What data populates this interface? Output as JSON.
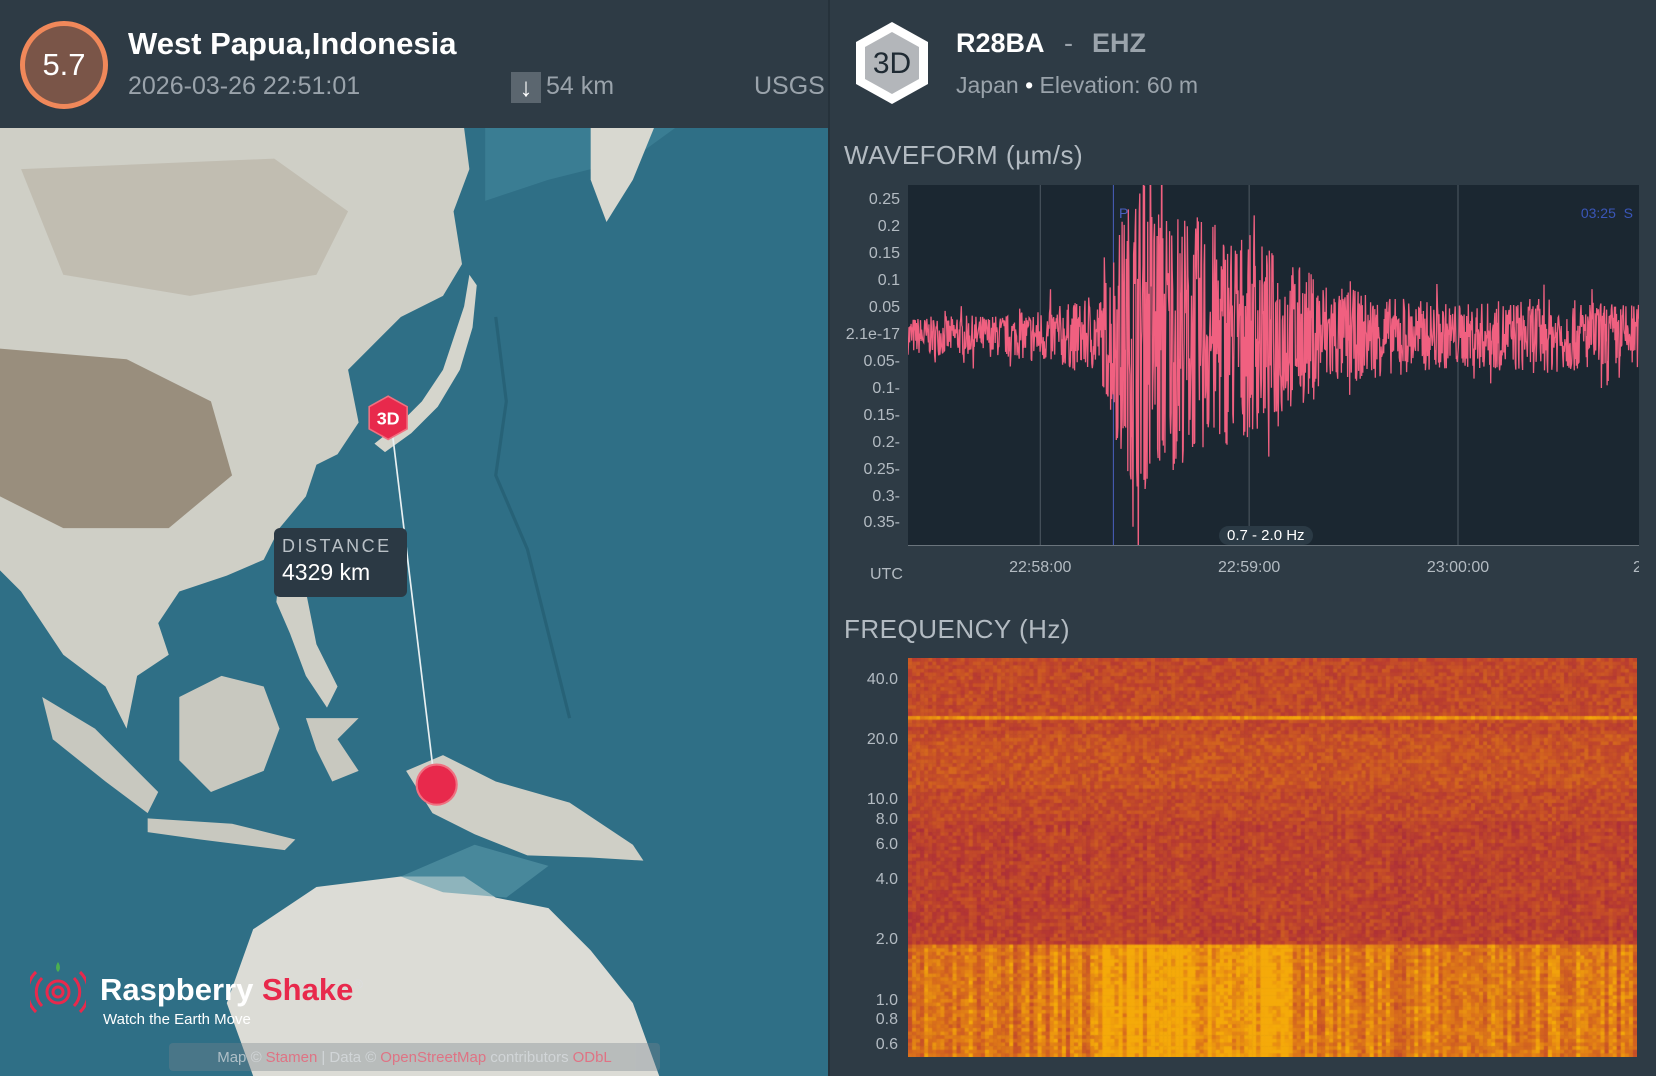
{
  "event": {
    "magnitude": "5.7",
    "location": "West Papua,Indonesia",
    "time": "2026-03-26 22:51:01",
    "depth": "54 km",
    "source": "USGS",
    "colors": {
      "magnitude_fill": "#7a5548",
      "magnitude_ring": "#f0885a"
    }
  },
  "station": {
    "badge": "3D",
    "code": "R28BA",
    "separator": "-",
    "channel": "EHZ",
    "country": "Japan",
    "bullet": "•",
    "elevation": "Elevation: 60 m"
  },
  "map": {
    "station_marker": "3D",
    "distance_label": "DISTANCE",
    "distance_value": "4329 km",
    "logo": {
      "brand1": "Raspberry",
      "brand2": "Shake",
      "reg": "®",
      "tagline": "Watch the Earth Move"
    },
    "attribution": {
      "map_prefix": "Map ©",
      "map_link": "Stamen",
      "sep": "| Data ©",
      "data_link": "OpenStreetMap",
      "suffix": "contributors",
      "extra_link": "ODbL"
    },
    "colors": {
      "ocean": "#2f6f86",
      "marker": "#e8294c"
    }
  },
  "waveform": {
    "title": "WAVEFORM (µm/s)",
    "utc_label": "UTC",
    "filter_label": "0.7 - 2.0 Hz",
    "p_label": "P",
    "s_label": "03:25  S",
    "x_cut_label": "2"
  },
  "spectrogram": {
    "title": "FREQUENCY (Hz)"
  },
  "chart_data": [
    {
      "type": "line",
      "title": "WAVEFORM (µm/s)",
      "ylabel": "µm/s",
      "xlabel": "UTC",
      "yticks": [
        "0.25",
        "0.2",
        "0.15",
        "0.1",
        "0.05",
        "2.1e-17",
        "-0.05",
        "-0.1",
        "-0.15",
        "-0.2",
        "-0.25",
        "-0.3",
        "-0.35"
      ],
      "ytick_values": [
        0.25,
        0.2,
        0.15,
        0.1,
        0.05,
        0,
        -0.05,
        -0.1,
        -0.15,
        -0.2,
        -0.25,
        -0.3,
        -0.35
      ],
      "ylim": [
        -0.39,
        0.28
      ],
      "xticks": [
        "22:58:00",
        "22:59:00",
        "23:00:00"
      ],
      "xtick_seconds": [
        38,
        98,
        158
      ],
      "xlim_seconds": [
        0,
        210
      ],
      "p_arrival_seconds": 59,
      "envelope": {
        "t": [
          0,
          30,
          45,
          55,
          60,
          66,
          80,
          95,
          110,
          125,
          140,
          160,
          180,
          210
        ],
        "amp": [
          0.035,
          0.04,
          0.06,
          0.07,
          0.2,
          0.3,
          0.23,
          0.2,
          0.14,
          0.09,
          0.07,
          0.06,
          0.07,
          0.06
        ]
      },
      "color": "#f06080"
    },
    {
      "type": "heatmap",
      "title": "FREQUENCY (Hz)",
      "yscale": "log",
      "yticks": [
        "40.0",
        "20.0",
        "10.0",
        "8.0",
        "6.0",
        "4.0",
        "2.0",
        "1.0",
        "0.8",
        "0.6"
      ],
      "ytick_values": [
        40,
        20,
        10,
        8,
        6,
        4,
        2,
        1,
        0.8,
        0.6
      ],
      "ylim": [
        0.53,
        52
      ],
      "xlim_seconds": [
        0,
        210
      ],
      "features": {
        "constant_line_hz": 27,
        "event_energy_band_hz": [
          0.5,
          2
        ],
        "event_window_seconds": [
          55,
          110
        ]
      }
    }
  ]
}
